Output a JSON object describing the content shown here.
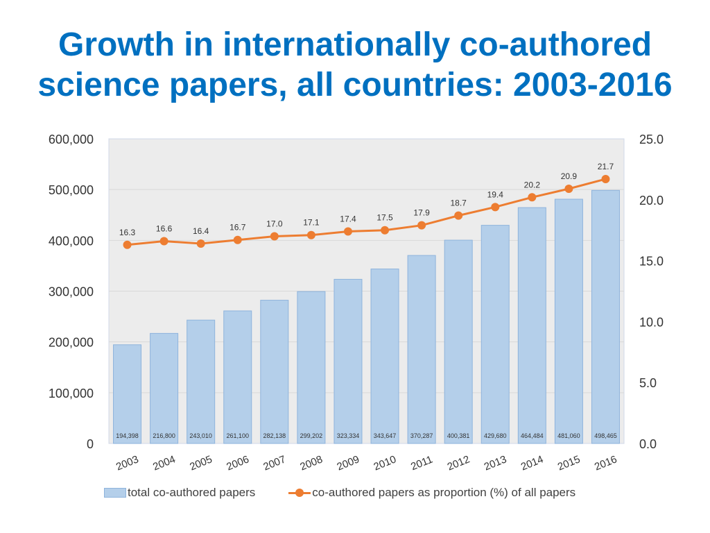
{
  "title_line1": "Growth in internationally co-authored",
  "title_line2": "science papers, all countries: 2003-2016",
  "chart_data": {
    "type": "bar",
    "categories": [
      "2003",
      "2004",
      "2005",
      "2006",
      "2007",
      "2008",
      "2009",
      "2010",
      "2011",
      "2012",
      "2013",
      "2014",
      "2015",
      "2016"
    ],
    "series": [
      {
        "name": "total co-authored papers",
        "type": "bar",
        "axis": "left",
        "values": [
          194398,
          216800,
          243010,
          261100,
          282138,
          299202,
          323334,
          343647,
          370287,
          400381,
          429680,
          464484,
          481060,
          498465
        ],
        "labels": [
          "194,398",
          "216,800",
          "243,010",
          "261,100",
          "282,138",
          "299,202",
          "323,334",
          "343,647",
          "370,287",
          "400,381",
          "429,680",
          "464,484",
          "481,060",
          "498,465"
        ],
        "color": "#b4cfea"
      },
      {
        "name": "co-authored papers as proportion (%) of all papers",
        "type": "line",
        "axis": "right",
        "values": [
          16.3,
          16.6,
          16.4,
          16.7,
          17.0,
          17.1,
          17.4,
          17.5,
          17.9,
          18.7,
          19.4,
          20.2,
          20.9,
          21.7
        ],
        "labels": [
          "16.3",
          "16.6",
          "16.4",
          "16.7",
          "17.0",
          "17.1",
          "17.4",
          "17.5",
          "17.9",
          "18.7",
          "19.4",
          "20.2",
          "20.9",
          "21.7"
        ],
        "color": "#ed7d31"
      }
    ],
    "left_axis": {
      "ylim": [
        0,
        600000
      ],
      "ticks": [
        0,
        100000,
        200000,
        300000,
        400000,
        500000,
        600000
      ],
      "tick_labels": [
        "0",
        "100,000",
        "200,000",
        "300,000",
        "400,000",
        "500,000",
        "600,000"
      ]
    },
    "right_axis": {
      "ylim": [
        0,
        25
      ],
      "ticks": [
        0,
        5,
        10,
        15,
        20,
        25
      ],
      "tick_labels": [
        "0.0",
        "5.0",
        "10.0",
        "15.0",
        "20.0",
        "25.0"
      ]
    },
    "grid": true,
    "legend_position": "bottom"
  }
}
